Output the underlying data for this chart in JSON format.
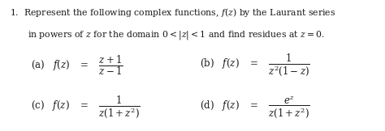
{
  "background_color": "#ffffff",
  "text_color": "#1a1a1a",
  "line1": "1.  Represent the following complex functions, $f(z)$ by the Laurant series",
  "line2": "in powers of $z$ for the domain $0 < |z| < 1$ and find residues at $z = 0.$",
  "fa": "(a)   $f(z)$   $=$ $\\dfrac{z+1}{z-1}$",
  "fb": "(b)   $f(z)$   $=$ $\\dfrac{1}{z^{2}(1-z)}$",
  "fc": "(c)   $f(z)$   $=$ $\\dfrac{1}{z(1+z^{2})}$",
  "fd": "(d)   $f(z)$   $=$ $\\dfrac{e^{z}}{z(1+z^{2})}$",
  "figsize": [
    4.74,
    1.62
  ],
  "dpi": 100,
  "fontsize_title": 7.8,
  "fontsize_eq": 8.5
}
